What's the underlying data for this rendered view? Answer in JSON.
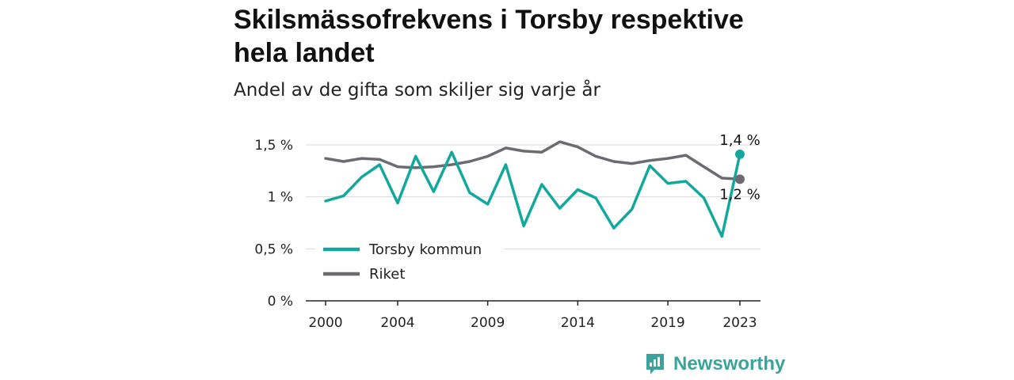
{
  "title": "Skilsmässofrekvens i Torsby respektive hela landet",
  "subtitle": "Andel av de gifta som skiljer sig varje år",
  "brand": {
    "name": "Newsworthy",
    "color": "#3aa39b"
  },
  "chart_data": {
    "type": "line",
    "x": [
      2000,
      2001,
      2002,
      2003,
      2004,
      2005,
      2006,
      2007,
      2008,
      2009,
      2010,
      2011,
      2012,
      2013,
      2014,
      2015,
      2016,
      2017,
      2018,
      2019,
      2020,
      2021,
      2022,
      2023
    ],
    "x_ticks": [
      2000,
      2004,
      2009,
      2014,
      2019,
      2023
    ],
    "x_tick_labels": [
      "2000",
      "2004",
      "2009",
      "2014",
      "2019",
      "2023"
    ],
    "ylim": [
      0,
      1.5
    ],
    "y_ticks": [
      0,
      0.5,
      1,
      1.5
    ],
    "y_tick_labels": [
      "0 %",
      "0,5 %",
      "1 %",
      "1,5 %"
    ],
    "grid": true,
    "legend_position": "bottom-left",
    "series": [
      {
        "name": "Torsby kommun",
        "color": "#13a89e",
        "values": [
          0.96,
          1.01,
          1.19,
          1.31,
          0.94,
          1.39,
          1.05,
          1.43,
          1.04,
          0.93,
          1.31,
          0.72,
          1.12,
          0.89,
          1.07,
          0.99,
          0.7,
          0.88,
          1.3,
          1.13,
          1.15,
          0.99,
          0.62,
          1.41
        ],
        "end_label": "1,4 %"
      },
      {
        "name": "Riket",
        "color": "#6d6b72",
        "values": [
          1.37,
          1.34,
          1.37,
          1.36,
          1.29,
          1.28,
          1.29,
          1.31,
          1.34,
          1.39,
          1.47,
          1.44,
          1.43,
          1.53,
          1.48,
          1.39,
          1.34,
          1.32,
          1.35,
          1.37,
          1.4,
          1.29,
          1.18,
          1.17
        ],
        "end_label": "1,2 %"
      }
    ]
  }
}
